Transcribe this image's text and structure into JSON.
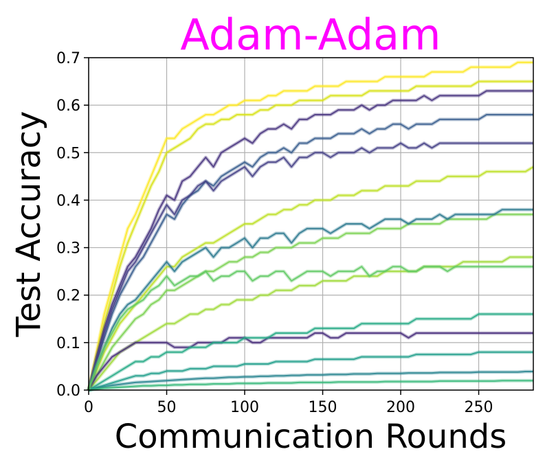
{
  "chart_data": {
    "type": "line",
    "title": "Adam-Adam",
    "xlabel": "Communication Rounds",
    "ylabel": "Test Accuracy",
    "xlim": [
      0,
      285
    ],
    "ylim": [
      0,
      0.7
    ],
    "xticks": [
      0,
      50,
      100,
      150,
      200,
      250
    ],
    "yticks": [
      0.0,
      0.1,
      0.2,
      0.3,
      0.4,
      0.5,
      0.6,
      0.7
    ],
    "grid": true,
    "legend": "none",
    "colormap": "viridis",
    "title_color": "#ff00ff",
    "x": [
      0,
      5,
      10,
      15,
      20,
      25,
      30,
      35,
      40,
      45,
      50,
      55,
      60,
      65,
      70,
      75,
      80,
      85,
      90,
      95,
      100,
      105,
      110,
      115,
      120,
      125,
      130,
      135,
      140,
      145,
      150,
      155,
      160,
      165,
      170,
      175,
      180,
      185,
      190,
      195,
      200,
      205,
      210,
      215,
      220,
      225,
      230,
      235,
      240,
      245,
      250,
      255,
      260,
      265,
      270,
      275,
      280,
      285
    ],
    "series": [
      {
        "values": [
          0,
          0.08,
          0.16,
          0.22,
          0.28,
          0.34,
          0.37,
          0.41,
          0.45,
          0.49,
          0.53,
          0.53,
          0.55,
          0.56,
          0.57,
          0.58,
          0.58,
          0.59,
          0.6,
          0.6,
          0.61,
          0.61,
          0.61,
          0.62,
          0.62,
          0.63,
          0.63,
          0.63,
          0.63,
          0.64,
          0.64,
          0.64,
          0.64,
          0.65,
          0.65,
          0.65,
          0.65,
          0.65,
          0.66,
          0.66,
          0.66,
          0.66,
          0.66,
          0.66,
          0.67,
          0.67,
          0.67,
          0.67,
          0.67,
          0.68,
          0.68,
          0.68,
          0.68,
          0.68,
          0.68,
          0.69,
          0.69,
          0.69
        ],
        "color": "#fde725"
      },
      {
        "values": [
          0,
          0.07,
          0.14,
          0.2,
          0.26,
          0.31,
          0.35,
          0.39,
          0.43,
          0.46,
          0.5,
          0.51,
          0.52,
          0.53,
          0.55,
          0.56,
          0.56,
          0.57,
          0.57,
          0.58,
          0.58,
          0.58,
          0.59,
          0.59,
          0.6,
          0.6,
          0.6,
          0.61,
          0.61,
          0.61,
          0.61,
          0.62,
          0.62,
          0.62,
          0.62,
          0.62,
          0.63,
          0.63,
          0.63,
          0.63,
          0.63,
          0.63,
          0.64,
          0.64,
          0.64,
          0.64,
          0.64,
          0.64,
          0.64,
          0.64,
          0.65,
          0.65,
          0.65,
          0.65,
          0.65,
          0.65,
          0.65,
          0.65
        ],
        "color": "#d8e219"
      },
      {
        "values": [
          0,
          0.07,
          0.13,
          0.18,
          0.22,
          0.26,
          0.28,
          0.31,
          0.34,
          0.38,
          0.41,
          0.4,
          0.44,
          0.45,
          0.47,
          0.49,
          0.47,
          0.5,
          0.51,
          0.52,
          0.53,
          0.52,
          0.54,
          0.55,
          0.55,
          0.56,
          0.55,
          0.57,
          0.57,
          0.58,
          0.58,
          0.58,
          0.59,
          0.59,
          0.59,
          0.6,
          0.59,
          0.6,
          0.6,
          0.61,
          0.61,
          0.61,
          0.61,
          0.62,
          0.61,
          0.62,
          0.62,
          0.62,
          0.62,
          0.62,
          0.62,
          0.63,
          0.63,
          0.63,
          0.63,
          0.63,
          0.63,
          0.63
        ],
        "color": "#46327e"
      },
      {
        "values": [
          0,
          0.06,
          0.11,
          0.16,
          0.2,
          0.23,
          0.26,
          0.28,
          0.31,
          0.34,
          0.37,
          0.36,
          0.39,
          0.41,
          0.42,
          0.44,
          0.43,
          0.45,
          0.46,
          0.47,
          0.48,
          0.47,
          0.49,
          0.5,
          0.5,
          0.51,
          0.5,
          0.52,
          0.52,
          0.53,
          0.53,
          0.53,
          0.54,
          0.54,
          0.54,
          0.55,
          0.54,
          0.55,
          0.55,
          0.56,
          0.56,
          0.55,
          0.56,
          0.56,
          0.56,
          0.57,
          0.57,
          0.57,
          0.57,
          0.57,
          0.57,
          0.58,
          0.58,
          0.58,
          0.58,
          0.58,
          0.58,
          0.58
        ],
        "color": "#365c8d"
      },
      {
        "values": [
          0,
          0.06,
          0.12,
          0.17,
          0.21,
          0.25,
          0.27,
          0.3,
          0.33,
          0.36,
          0.39,
          0.37,
          0.4,
          0.41,
          0.43,
          0.44,
          0.42,
          0.44,
          0.45,
          0.46,
          0.47,
          0.45,
          0.47,
          0.48,
          0.48,
          0.49,
          0.47,
          0.49,
          0.49,
          0.5,
          0.5,
          0.49,
          0.5,
          0.5,
          0.5,
          0.51,
          0.5,
          0.51,
          0.51,
          0.51,
          0.52,
          0.51,
          0.51,
          0.52,
          0.51,
          0.52,
          0.52,
          0.52,
          0.52,
          0.52,
          0.52,
          0.52,
          0.52,
          0.52,
          0.52,
          0.52,
          0.52,
          0.52
        ],
        "color": "#433e85"
      },
      {
        "values": [
          0,
          0.04,
          0.08,
          0.11,
          0.14,
          0.16,
          0.18,
          0.2,
          0.22,
          0.24,
          0.26,
          0.26,
          0.28,
          0.29,
          0.3,
          0.31,
          0.31,
          0.32,
          0.33,
          0.34,
          0.35,
          0.35,
          0.36,
          0.37,
          0.37,
          0.38,
          0.38,
          0.39,
          0.39,
          0.4,
          0.4,
          0.4,
          0.41,
          0.41,
          0.41,
          0.42,
          0.42,
          0.42,
          0.43,
          0.43,
          0.43,
          0.43,
          0.44,
          0.44,
          0.44,
          0.44,
          0.45,
          0.45,
          0.45,
          0.45,
          0.45,
          0.46,
          0.46,
          0.46,
          0.46,
          0.46,
          0.46,
          0.47
        ],
        "color": "#bddf26"
      },
      {
        "values": [
          0,
          0.03,
          0.06,
          0.09,
          0.11,
          0.13,
          0.15,
          0.16,
          0.18,
          0.19,
          0.21,
          0.21,
          0.22,
          0.23,
          0.24,
          0.25,
          0.25,
          0.26,
          0.27,
          0.27,
          0.28,
          0.28,
          0.29,
          0.29,
          0.3,
          0.3,
          0.3,
          0.31,
          0.31,
          0.31,
          0.32,
          0.32,
          0.32,
          0.33,
          0.33,
          0.33,
          0.33,
          0.34,
          0.34,
          0.34,
          0.34,
          0.35,
          0.35,
          0.35,
          0.35,
          0.35,
          0.36,
          0.36,
          0.36,
          0.36,
          0.36,
          0.36,
          0.37,
          0.37,
          0.37,
          0.37,
          0.37,
          0.37
        ],
        "color": "#7ad151"
      },
      {
        "values": [
          0,
          0.05,
          0.09,
          0.13,
          0.16,
          0.18,
          0.19,
          0.21,
          0.23,
          0.25,
          0.27,
          0.25,
          0.27,
          0.28,
          0.29,
          0.3,
          0.28,
          0.3,
          0.3,
          0.31,
          0.32,
          0.3,
          0.32,
          0.32,
          0.33,
          0.33,
          0.31,
          0.33,
          0.34,
          0.34,
          0.34,
          0.33,
          0.34,
          0.35,
          0.35,
          0.35,
          0.34,
          0.35,
          0.36,
          0.36,
          0.36,
          0.35,
          0.36,
          0.36,
          0.36,
          0.37,
          0.36,
          0.37,
          0.37,
          0.37,
          0.37,
          0.37,
          0.37,
          0.38,
          0.38,
          0.38,
          0.38,
          0.38
        ],
        "color": "#2a788e"
      },
      {
        "values": [
          0,
          0.02,
          0.04,
          0.06,
          0.08,
          0.09,
          0.1,
          0.11,
          0.12,
          0.13,
          0.14,
          0.14,
          0.15,
          0.16,
          0.16,
          0.17,
          0.17,
          0.18,
          0.18,
          0.19,
          0.19,
          0.19,
          0.2,
          0.2,
          0.21,
          0.21,
          0.21,
          0.22,
          0.22,
          0.22,
          0.23,
          0.23,
          0.23,
          0.23,
          0.24,
          0.24,
          0.24,
          0.24,
          0.25,
          0.25,
          0.25,
          0.25,
          0.25,
          0.26,
          0.26,
          0.26,
          0.26,
          0.26,
          0.27,
          0.27,
          0.27,
          0.27,
          0.27,
          0.27,
          0.28,
          0.28,
          0.28,
          0.28
        ],
        "color": "#a0da39"
      },
      {
        "values": [
          0,
          0.03,
          0.05,
          0.07,
          0.08,
          0.09,
          0.1,
          0.1,
          0.1,
          0.1,
          0.1,
          0.09,
          0.09,
          0.09,
          0.1,
          0.1,
          0.1,
          0.1,
          0.11,
          0.11,
          0.11,
          0.1,
          0.1,
          0.11,
          0.11,
          0.11,
          0.11,
          0.11,
          0.11,
          0.12,
          0.12,
          0.11,
          0.11,
          0.12,
          0.12,
          0.12,
          0.12,
          0.12,
          0.12,
          0.12,
          0.12,
          0.11,
          0.12,
          0.12,
          0.12,
          0.12,
          0.12,
          0.12,
          0.12,
          0.12,
          0.12,
          0.12,
          0.12,
          0.12,
          0.12,
          0.12,
          0.12,
          0.12
        ],
        "color": "#472d7b"
      },
      {
        "values": [
          0,
          0.01,
          0.02,
          0.03,
          0.04,
          0.05,
          0.06,
          0.06,
          0.07,
          0.07,
          0.08,
          0.08,
          0.08,
          0.09,
          0.09,
          0.09,
          0.1,
          0.1,
          0.1,
          0.1,
          0.11,
          0.11,
          0.11,
          0.11,
          0.12,
          0.12,
          0.12,
          0.12,
          0.12,
          0.13,
          0.13,
          0.13,
          0.13,
          0.13,
          0.13,
          0.14,
          0.14,
          0.14,
          0.14,
          0.14,
          0.14,
          0.14,
          0.15,
          0.15,
          0.15,
          0.15,
          0.15,
          0.15,
          0.15,
          0.15,
          0.16,
          0.16,
          0.16,
          0.16,
          0.16,
          0.16,
          0.16,
          0.16
        ],
        "color": "#22a884"
      },
      {
        "values": [
          0,
          0.005,
          0.01,
          0.015,
          0.02,
          0.025,
          0.03,
          0.03,
          0.035,
          0.035,
          0.04,
          0.04,
          0.04,
          0.045,
          0.045,
          0.045,
          0.05,
          0.05,
          0.05,
          0.05,
          0.055,
          0.055,
          0.055,
          0.055,
          0.06,
          0.06,
          0.06,
          0.06,
          0.06,
          0.065,
          0.065,
          0.065,
          0.065,
          0.065,
          0.065,
          0.07,
          0.07,
          0.07,
          0.07,
          0.07,
          0.07,
          0.07,
          0.075,
          0.075,
          0.075,
          0.075,
          0.075,
          0.075,
          0.075,
          0.075,
          0.08,
          0.08,
          0.08,
          0.08,
          0.08,
          0.08,
          0.08,
          0.08
        ],
        "color": "#1f9e89"
      },
      {
        "values": [
          0,
          0.004,
          0.007,
          0.01,
          0.012,
          0.014,
          0.016,
          0.017,
          0.018,
          0.019,
          0.02,
          0.021,
          0.022,
          0.023,
          0.024,
          0.025,
          0.025,
          0.026,
          0.027,
          0.027,
          0.028,
          0.028,
          0.029,
          0.029,
          0.03,
          0.03,
          0.031,
          0.031,
          0.032,
          0.032,
          0.032,
          0.033,
          0.033,
          0.033,
          0.034,
          0.034,
          0.034,
          0.035,
          0.035,
          0.035,
          0.035,
          0.036,
          0.036,
          0.036,
          0.036,
          0.037,
          0.037,
          0.037,
          0.037,
          0.037,
          0.038,
          0.038,
          0.038,
          0.038,
          0.038,
          0.038,
          0.039,
          0.039
        ],
        "color": "#26828e"
      },
      {
        "values": [
          0,
          0.002,
          0.004,
          0.005,
          0.006,
          0.007,
          0.008,
          0.009,
          0.009,
          0.01,
          0.01,
          0.011,
          0.011,
          0.012,
          0.012,
          0.012,
          0.013,
          0.013,
          0.013,
          0.014,
          0.014,
          0.014,
          0.014,
          0.015,
          0.015,
          0.015,
          0.015,
          0.016,
          0.016,
          0.016,
          0.016,
          0.016,
          0.017,
          0.017,
          0.017,
          0.017,
          0.017,
          0.017,
          0.018,
          0.018,
          0.018,
          0.018,
          0.018,
          0.018,
          0.018,
          0.019,
          0.019,
          0.019,
          0.019,
          0.019,
          0.019,
          0.019,
          0.019,
          0.02,
          0.02,
          0.02,
          0.02,
          0.02
        ],
        "color": "#35b779"
      },
      {
        "values": [
          0,
          0.05,
          0.09,
          0.12,
          0.15,
          0.17,
          0.18,
          0.19,
          0.21,
          0.22,
          0.24,
          0.22,
          0.23,
          0.24,
          0.24,
          0.25,
          0.23,
          0.24,
          0.24,
          0.25,
          0.25,
          0.23,
          0.24,
          0.24,
          0.25,
          0.25,
          0.23,
          0.24,
          0.25,
          0.25,
          0.25,
          0.24,
          0.25,
          0.25,
          0.25,
          0.26,
          0.24,
          0.25,
          0.25,
          0.26,
          0.26,
          0.25,
          0.25,
          0.26,
          0.26,
          0.26,
          0.25,
          0.26,
          0.26,
          0.26,
          0.26,
          0.26,
          0.26,
          0.26,
          0.26,
          0.26,
          0.26,
          0.26
        ],
        "color": "#5ec962"
      }
    ]
  }
}
